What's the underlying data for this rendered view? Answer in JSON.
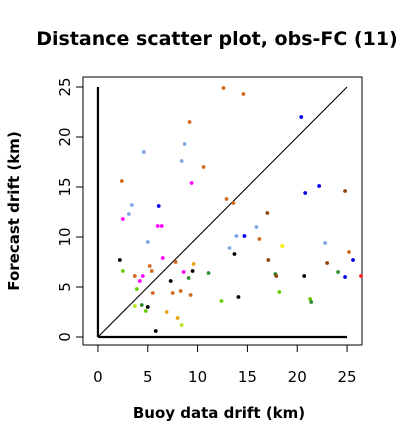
{
  "chart_data": {
    "type": "scatter",
    "title": "Distance scatter plot, obs-FC (11)",
    "xlabel": "Buoy data drift (km)",
    "ylabel": "Forecast drift (km)",
    "xlim": [
      -1.5,
      26.5
    ],
    "ylim": [
      -0.8,
      26.0
    ],
    "xticks": [
      0,
      5,
      10,
      15,
      20,
      25
    ],
    "yticks": [
      0,
      5,
      10,
      15,
      20,
      25
    ],
    "reference_line": {
      "from": [
        0,
        0
      ],
      "to": [
        25,
        25
      ],
      "color": "#000000"
    },
    "axis_lines": {
      "x_axis": [
        [
          0,
          0
        ],
        [
          25,
          0
        ]
      ],
      "y_axis": [
        [
          0,
          0
        ],
        [
          0,
          25
        ]
      ],
      "color": "#000000"
    },
    "grid": false,
    "legend": "none",
    "points": [
      {
        "x": 2.2,
        "y": 7.7,
        "color": "#000000"
      },
      {
        "x": 2.4,
        "y": 15.6,
        "color": "#d2691e"
      },
      {
        "x": 2.5,
        "y": 11.8,
        "color": "#ff00ff"
      },
      {
        "x": 2.5,
        "y": 6.6,
        "color": "#66cc00"
      },
      {
        "x": 3.1,
        "y": 12.3,
        "color": "#7fa7e0"
      },
      {
        "x": 3.4,
        "y": 13.2,
        "color": "#7fa7e0"
      },
      {
        "x": 3.7,
        "y": 6.1,
        "color": "#d2691e"
      },
      {
        "x": 3.7,
        "y": 3.1,
        "color": "#b3e619"
      },
      {
        "x": 3.9,
        "y": 4.8,
        "color": "#66cc00"
      },
      {
        "x": 4.2,
        "y": 5.6,
        "color": "#ff00ff"
      },
      {
        "x": 4.4,
        "y": 3.2,
        "color": "#2e8b2e"
      },
      {
        "x": 4.5,
        "y": 6.1,
        "color": "#ff00ff"
      },
      {
        "x": 4.6,
        "y": 18.5,
        "color": "#7fa7e0"
      },
      {
        "x": 4.8,
        "y": 2.6,
        "color": "#66cc00"
      },
      {
        "x": 5.0,
        "y": 9.5,
        "color": "#7fa7e0"
      },
      {
        "x": 5.0,
        "y": 3.0,
        "color": "#000000"
      },
      {
        "x": 5.2,
        "y": 7.1,
        "color": "#d2691e"
      },
      {
        "x": 5.4,
        "y": 6.6,
        "color": "#d2691e"
      },
      {
        "x": 5.5,
        "y": 4.4,
        "color": "#d2691e"
      },
      {
        "x": 5.8,
        "y": 0.6,
        "color": "#000000"
      },
      {
        "x": 6.0,
        "y": 11.1,
        "color": "#ff00ff"
      },
      {
        "x": 6.1,
        "y": 13.1,
        "color": "#0000ee"
      },
      {
        "x": 6.4,
        "y": 11.1,
        "color": "#ff00ff"
      },
      {
        "x": 6.5,
        "y": 7.9,
        "color": "#ff00ff"
      },
      {
        "x": 6.9,
        "y": 2.5,
        "color": "#e8a317"
      },
      {
        "x": 7.3,
        "y": 5.6,
        "color": "#000000"
      },
      {
        "x": 7.5,
        "y": 4.4,
        "color": "#d2691e"
      },
      {
        "x": 7.8,
        "y": 7.5,
        "color": "#d2691e"
      },
      {
        "x": 8.0,
        "y": 1.9,
        "color": "#e8a317"
      },
      {
        "x": 8.3,
        "y": 4.6,
        "color": "#d2691e"
      },
      {
        "x": 8.4,
        "y": 17.6,
        "color": "#7fa7e0"
      },
      {
        "x": 8.4,
        "y": 1.2,
        "color": "#b3e619"
      },
      {
        "x": 8.6,
        "y": 6.5,
        "color": "#ff00ff"
      },
      {
        "x": 8.7,
        "y": 19.3,
        "color": "#7fa7e0"
      },
      {
        "x": 9.1,
        "y": 5.9,
        "color": "#2e8b2e"
      },
      {
        "x": 9.2,
        "y": 21.5,
        "color": "#d2691e"
      },
      {
        "x": 9.3,
        "y": 4.2,
        "color": "#d2691e"
      },
      {
        "x": 9.4,
        "y": 15.4,
        "color": "#ff00ff"
      },
      {
        "x": 9.5,
        "y": 6.6,
        "color": "#000000"
      },
      {
        "x": 9.6,
        "y": 7.3,
        "color": "#e8a317"
      },
      {
        "x": 10.6,
        "y": 17.0,
        "color": "#d2691e"
      },
      {
        "x": 11.1,
        "y": 6.4,
        "color": "#2e8b2e"
      },
      {
        "x": 12.4,
        "y": 3.6,
        "color": "#66cc00"
      },
      {
        "x": 12.6,
        "y": 24.9,
        "color": "#d2691e"
      },
      {
        "x": 12.9,
        "y": 13.8,
        "color": "#d2691e"
      },
      {
        "x": 13.2,
        "y": 8.9,
        "color": "#7fa7e0"
      },
      {
        "x": 13.6,
        "y": 13.4,
        "color": "#d2691e"
      },
      {
        "x": 13.7,
        "y": 8.3,
        "color": "#000000"
      },
      {
        "x": 13.9,
        "y": 10.1,
        "color": "#7fa7e0"
      },
      {
        "x": 14.1,
        "y": 4.0,
        "color": "#000000"
      },
      {
        "x": 14.6,
        "y": 24.3,
        "color": "#d2691e"
      },
      {
        "x": 14.7,
        "y": 10.1,
        "color": "#0000ee"
      },
      {
        "x": 15.9,
        "y": 11.0,
        "color": "#7fa7e0"
      },
      {
        "x": 16.2,
        "y": 9.8,
        "color": "#d2691e"
      },
      {
        "x": 17.0,
        "y": 12.4,
        "color": "#8b4513"
      },
      {
        "x": 17.1,
        "y": 7.7,
        "color": "#8b4513"
      },
      {
        "x": 17.8,
        "y": 6.3,
        "color": "#2e8b2e"
      },
      {
        "x": 17.9,
        "y": 6.1,
        "color": "#8b4513"
      },
      {
        "x": 18.2,
        "y": 4.5,
        "color": "#66cc00"
      },
      {
        "x": 18.5,
        "y": 9.1,
        "color": "#ffeb00"
      },
      {
        "x": 20.4,
        "y": 22.0,
        "color": "#0000ee"
      },
      {
        "x": 20.8,
        "y": 14.4,
        "color": "#0000ee"
      },
      {
        "x": 20.7,
        "y": 6.1,
        "color": "#000000"
      },
      {
        "x": 21.3,
        "y": 3.8,
        "color": "#66cc00"
      },
      {
        "x": 21.4,
        "y": 3.5,
        "color": "#2e8b2e"
      },
      {
        "x": 22.2,
        "y": 15.1,
        "color": "#0000ee"
      },
      {
        "x": 22.8,
        "y": 9.4,
        "color": "#7fa7e0"
      },
      {
        "x": 23.0,
        "y": 7.4,
        "color": "#8b4513"
      },
      {
        "x": 24.1,
        "y": 6.5,
        "color": "#2e8b2e"
      },
      {
        "x": 24.8,
        "y": 14.6,
        "color": "#8b4513"
      },
      {
        "x": 24.8,
        "y": 6.0,
        "color": "#0000ee"
      },
      {
        "x": 25.2,
        "y": 8.5,
        "color": "#d2691e"
      },
      {
        "x": 25.6,
        "y": 7.7,
        "color": "#0000ee"
      },
      {
        "x": 26.4,
        "y": 6.1,
        "color": "#ff2020"
      }
    ]
  }
}
